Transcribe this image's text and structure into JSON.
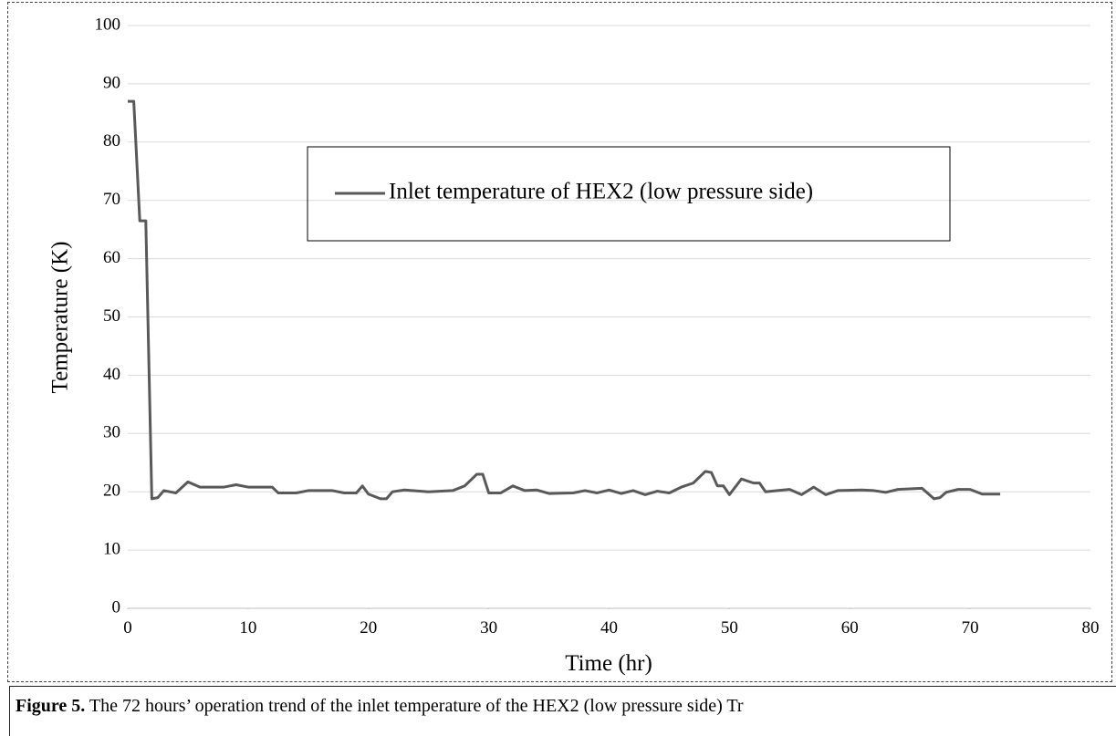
{
  "chart_data": {
    "type": "line",
    "x_label": "Time (hr)",
    "y_label": "Temperature (K)",
    "xlim": [
      0,
      80
    ],
    "xticks": [
      0,
      10,
      20,
      30,
      40,
      50,
      60,
      70,
      80
    ],
    "ylim": [
      0,
      100
    ],
    "yticks": [
      0,
      10,
      20,
      30,
      40,
      50,
      60,
      70,
      80,
      90,
      100
    ],
    "grid": true,
    "legend": "top",
    "x": [
      0,
      0.5,
      1.0,
      1.5,
      2.0,
      2.5,
      3,
      4,
      5,
      6,
      8,
      9,
      10,
      12,
      12.5,
      14,
      15,
      17,
      18,
      19,
      19.5,
      20,
      21,
      21.5,
      22,
      23,
      25,
      27,
      28,
      29,
      29.5,
      30,
      31,
      32,
      33,
      34,
      35,
      37,
      38,
      39,
      40,
      41,
      42,
      43,
      44,
      45,
      46,
      47,
      48,
      48.5,
      49,
      49.5,
      50,
      51,
      52,
      52.5,
      53,
      54,
      55,
      56,
      57,
      58,
      59,
      61,
      62,
      63,
      64,
      66,
      67,
      67.5,
      68,
      69,
      70,
      71,
      72.5
    ],
    "series": [
      {
        "name": "Inlet temperature of HEX2 (low pressure side)",
        "color": "#595959",
        "values": [
          87,
          87,
          66.5,
          66.5,
          18.8,
          19,
          20.2,
          19.8,
          21.7,
          20.8,
          20.8,
          21.2,
          20.8,
          20.8,
          19.8,
          19.8,
          20.2,
          20.2,
          19.8,
          19.8,
          21,
          19.6,
          18.8,
          18.8,
          20,
          20.3,
          20,
          20.2,
          21,
          23,
          23,
          19.8,
          19.8,
          21,
          20.2,
          20.3,
          19.7,
          19.8,
          20.2,
          19.8,
          20.3,
          19.7,
          20.2,
          19.5,
          20.1,
          19.8,
          20.8,
          21.5,
          23.5,
          23.3,
          21,
          21,
          19.5,
          22.2,
          21.5,
          21.5,
          20,
          20.2,
          20.4,
          19.5,
          20.8,
          19.5,
          20.2,
          20.3,
          20.2,
          19.9,
          20.4,
          20.6,
          18.8,
          19,
          19.9,
          20.4,
          20.4,
          19.6,
          19.6
        ]
      }
    ],
    "caption_label": "Figure 5.",
    "caption": " The 72 hours’ operation trend of the inlet temperature of the HEX2 (low pressure side) Tr"
  }
}
